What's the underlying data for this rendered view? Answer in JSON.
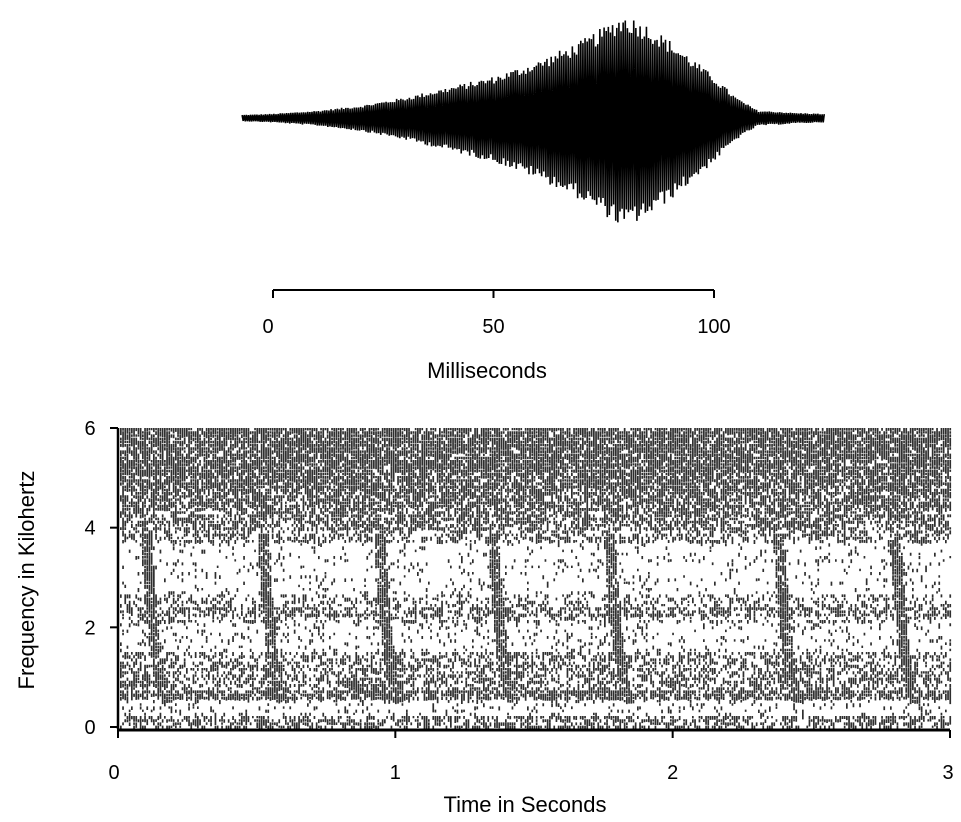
{
  "chart_data": [
    {
      "type": "line",
      "panel": "waveform",
      "xlabel": "Milliseconds",
      "x_ticks": [
        0,
        50,
        100
      ],
      "xlim": [
        -7,
        125
      ],
      "envelope": {
        "x": [
          -7,
          0,
          10,
          20,
          30,
          40,
          50,
          60,
          65,
          70,
          75,
          78,
          80,
          85,
          90,
          95,
          100,
          105,
          110,
          115,
          118,
          125
        ],
        "amplitude": [
          0.03,
          0.04,
          0.07,
          0.12,
          0.2,
          0.3,
          0.4,
          0.55,
          0.65,
          0.75,
          0.88,
          0.97,
          1.0,
          0.9,
          0.75,
          0.58,
          0.4,
          0.2,
          0.07,
          0.06,
          0.05,
          0.04
        ]
      },
      "line_color": "#000000"
    },
    {
      "type": "heatmap",
      "panel": "spectrogram",
      "xlabel": "Time in Seconds",
      "ylabel": "Frequency in Kilohertz",
      "x_ticks": [
        0,
        1,
        2,
        3
      ],
      "y_ticks": [
        0,
        2,
        4,
        6
      ],
      "xlim": [
        0,
        3
      ],
      "ylim": [
        0,
        6
      ],
      "pulse_times_s": [
        0.1,
        0.52,
        0.94,
        1.35,
        1.77,
        2.38,
        2.8
      ],
      "dense_noise_band_khz": [
        4,
        6
      ],
      "clear_band_khz": [
        2.7,
        3.7
      ],
      "harmonic_bands_khz": [
        0.7,
        1.3,
        2.3
      ],
      "color_scale": [
        "#ffffff",
        "#000000"
      ]
    }
  ]
}
